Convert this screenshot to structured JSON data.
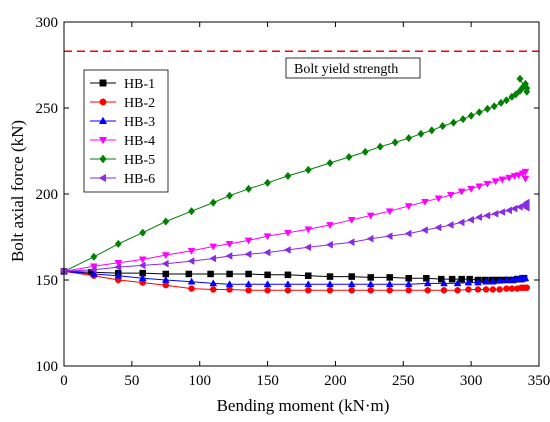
{
  "chart_data": {
    "type": "scatter",
    "xlabel": "Bending moment (kN·m)",
    "ylabel": "Bolt axial force (kN)",
    "xlim": [
      0,
      350
    ],
    "ylim": [
      100,
      300
    ],
    "xticks": [
      0,
      50,
      100,
      150,
      200,
      250,
      300,
      350
    ],
    "yticks": [
      100,
      150,
      200,
      250,
      300
    ],
    "grid": false,
    "legend_position": "top-left",
    "reference_line": {
      "y": 283,
      "color": "#ff0000",
      "style": "dashed",
      "label": "Bolt yield strength"
    },
    "series": [
      {
        "name": "HB-1",
        "color": "#000000",
        "marker": "square",
        "points": [
          [
            0,
            155
          ],
          [
            20,
            154.5
          ],
          [
            40,
            154
          ],
          [
            58,
            154
          ],
          [
            75,
            153.5
          ],
          [
            92,
            153.5
          ],
          [
            108,
            153.5
          ],
          [
            122,
            153.5
          ],
          [
            136,
            153.5
          ],
          [
            150,
            153
          ],
          [
            165,
            153
          ],
          [
            180,
            152.5
          ],
          [
            196,
            152
          ],
          [
            212,
            152
          ],
          [
            226,
            151.5
          ],
          [
            240,
            151.5
          ],
          [
            254,
            151
          ],
          [
            267,
            151
          ],
          [
            278,
            150.5
          ],
          [
            286,
            150.5
          ],
          [
            293,
            150.5
          ],
          [
            299,
            150.5
          ],
          [
            305,
            150
          ],
          [
            310,
            150
          ],
          [
            315,
            150
          ],
          [
            319,
            150
          ],
          [
            323,
            150
          ],
          [
            327,
            150
          ],
          [
            331,
            150
          ],
          [
            334,
            150.5
          ],
          [
            337,
            150.5
          ],
          [
            339,
            151
          ]
        ]
      },
      {
        "name": "HB-2",
        "color": "#ff0000",
        "marker": "circle",
        "points": [
          [
            0,
            155
          ],
          [
            22,
            152.5
          ],
          [
            40,
            150
          ],
          [
            58,
            148.5
          ],
          [
            75,
            147
          ],
          [
            94,
            145
          ],
          [
            110,
            144.5
          ],
          [
            122,
            144.5
          ],
          [
            136,
            144
          ],
          [
            150,
            144
          ],
          [
            165,
            144
          ],
          [
            180,
            144
          ],
          [
            196,
            144
          ],
          [
            212,
            144
          ],
          [
            226,
            144
          ],
          [
            240,
            144
          ],
          [
            254,
            144
          ],
          [
            268,
            144
          ],
          [
            280,
            144
          ],
          [
            290,
            144
          ],
          [
            298,
            144.5
          ],
          [
            305,
            144.5
          ],
          [
            311,
            144.5
          ],
          [
            316,
            144.5
          ],
          [
            321,
            144.5
          ],
          [
            326,
            145
          ],
          [
            330,
            145
          ],
          [
            334,
            145
          ],
          [
            337,
            145.5
          ],
          [
            339,
            145.5
          ],
          [
            341,
            145.5
          ]
        ]
      },
      {
        "name": "HB-3",
        "color": "#0000ff",
        "marker": "triangle-up",
        "points": [
          [
            0,
            155
          ],
          [
            22,
            153.5
          ],
          [
            40,
            152.5
          ],
          [
            58,
            151
          ],
          [
            75,
            150
          ],
          [
            94,
            149
          ],
          [
            110,
            148
          ],
          [
            122,
            147.5
          ],
          [
            136,
            147.5
          ],
          [
            150,
            147.5
          ],
          [
            165,
            147.5
          ],
          [
            180,
            147.5
          ],
          [
            196,
            147.5
          ],
          [
            212,
            147.5
          ],
          [
            226,
            147.5
          ],
          [
            240,
            147.5
          ],
          [
            254,
            147.5
          ],
          [
            268,
            148
          ],
          [
            280,
            148
          ],
          [
            290,
            148
          ],
          [
            298,
            148.5
          ],
          [
            305,
            148.5
          ],
          [
            311,
            149
          ],
          [
            316,
            149
          ],
          [
            321,
            149.5
          ],
          [
            326,
            150
          ],
          [
            330,
            150
          ],
          [
            333,
            150.5
          ],
          [
            336,
            151
          ],
          [
            338,
            151
          ],
          [
            340,
            151
          ]
        ]
      },
      {
        "name": "HB-4",
        "color": "#ff00ff",
        "marker": "triangle-down",
        "points": [
          [
            0,
            155
          ],
          [
            22,
            158
          ],
          [
            40,
            160
          ],
          [
            58,
            162
          ],
          [
            75,
            164.5
          ],
          [
            94,
            167
          ],
          [
            110,
            169.5
          ],
          [
            122,
            171
          ],
          [
            136,
            173
          ],
          [
            150,
            175.5
          ],
          [
            165,
            177.5
          ],
          [
            180,
            179.5
          ],
          [
            196,
            182
          ],
          [
            212,
            185
          ],
          [
            226,
            187.5
          ],
          [
            240,
            190
          ],
          [
            254,
            193
          ],
          [
            266,
            195.5
          ],
          [
            276,
            197.5
          ],
          [
            285,
            199.5
          ],
          [
            293,
            201.5
          ],
          [
            300,
            203
          ],
          [
            306,
            204.5
          ],
          [
            312,
            206
          ],
          [
            318,
            207.5
          ],
          [
            323,
            208.5
          ],
          [
            328,
            209.5
          ],
          [
            332,
            210.5
          ],
          [
            335,
            211
          ],
          [
            338,
            212
          ],
          [
            340,
            213
          ],
          [
            340,
            209
          ]
        ]
      },
      {
        "name": "HB-5",
        "color": "#008000",
        "marker": "diamond",
        "points": [
          [
            0,
            155
          ],
          [
            22,
            163.5
          ],
          [
            40,
            171
          ],
          [
            58,
            177.5
          ],
          [
            75,
            184
          ],
          [
            94,
            190
          ],
          [
            110,
            195
          ],
          [
            122,
            199
          ],
          [
            136,
            203
          ],
          [
            150,
            206.5
          ],
          [
            165,
            210.5
          ],
          [
            180,
            214
          ],
          [
            196,
            218
          ],
          [
            210,
            221.5
          ],
          [
            222,
            224.5
          ],
          [
            233,
            227.5
          ],
          [
            244,
            230
          ],
          [
            254,
            232.5
          ],
          [
            263,
            235
          ],
          [
            271,
            237
          ],
          [
            279,
            239.5
          ],
          [
            287,
            241.5
          ],
          [
            294,
            243.5
          ],
          [
            300,
            245.5
          ],
          [
            306,
            247.5
          ],
          [
            312,
            249.5
          ],
          [
            317,
            251
          ],
          [
            322,
            253
          ],
          [
            326,
            254.5
          ],
          [
            330,
            256.5
          ],
          [
            333,
            258
          ],
          [
            336,
            260
          ],
          [
            338,
            262
          ],
          [
            340,
            264
          ],
          [
            341,
            261.5
          ],
          [
            341,
            259.5
          ],
          [
            336,
            267
          ]
        ]
      },
      {
        "name": "HB-6",
        "color": "#8a2be2",
        "marker": "triangle-left",
        "points": [
          [
            0,
            155
          ],
          [
            22,
            156
          ],
          [
            40,
            157.5
          ],
          [
            58,
            158.5
          ],
          [
            75,
            159.5
          ],
          [
            94,
            161
          ],
          [
            110,
            162.5
          ],
          [
            122,
            164
          ],
          [
            136,
            165
          ],
          [
            150,
            166
          ],
          [
            165,
            167.5
          ],
          [
            180,
            169
          ],
          [
            196,
            170.5
          ],
          [
            212,
            172
          ],
          [
            226,
            174
          ],
          [
            240,
            175.5
          ],
          [
            254,
            177
          ],
          [
            266,
            179
          ],
          [
            276,
            180.5
          ],
          [
            285,
            182
          ],
          [
            293,
            183.5
          ],
          [
            300,
            185
          ],
          [
            306,
            186.5
          ],
          [
            312,
            187.5
          ],
          [
            318,
            188.5
          ],
          [
            323,
            189.5
          ],
          [
            328,
            190.5
          ],
          [
            332,
            191.5
          ],
          [
            336,
            192.5
          ],
          [
            339,
            193.5
          ],
          [
            341,
            195
          ],
          [
            341,
            192
          ]
        ]
      }
    ]
  }
}
